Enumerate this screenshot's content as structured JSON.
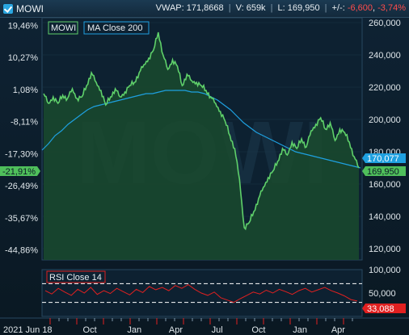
{
  "header": {
    "ticker": "MOWI",
    "vwap_label": "VWAP:",
    "vwap": "171,8668",
    "volume_label": "V:",
    "volume": "659k",
    "last_label": "L:",
    "last": "169,950",
    "change_label": "+/-:",
    "change": "-6,600",
    "change_pct": "-3,74%"
  },
  "legend": {
    "main": "MOWI",
    "ma": "MA Close 200",
    "rsi": "RSI Close 14"
  },
  "colors": {
    "price": "#4fbf5b",
    "price_fill": "#173a2a",
    "ma": "#1ea0e0",
    "rsi": "#e02020",
    "background": "#0b1a26",
    "header": "#1b3a52"
  },
  "badges": {
    "ma_value": "170,077",
    "price_value": "169,950",
    "pct_value": "-21,91%",
    "rsi_value": "33,088"
  },
  "watermark": "MOWI",
  "chart_data": {
    "type": "line",
    "title": "",
    "left_axis_ticks": [
      "19,46%",
      "10,27%",
      "1,08%",
      "-8,11%",
      "-17,30%",
      "-26,49%",
      "-35,67%",
      "-44,86%"
    ],
    "right_axis_ticks": [
      "260,000",
      "240,000",
      "220,000",
      "200,000",
      "180,000",
      "160,000",
      "140,000",
      "120,000"
    ],
    "ylim": [
      113,
      263
    ],
    "x_labels": [
      "2021 Jun 18",
      "Oct",
      "Jan",
      "Apr",
      "Jul",
      "Oct",
      "Jan",
      "Apr"
    ],
    "x_label_positions": [
      0,
      15,
      29,
      42,
      55,
      68,
      81,
      93
    ],
    "series": [
      {
        "name": "MOWI",
        "values": [
          216,
          210,
          214,
          210,
          215,
          213,
          219,
          213,
          214,
          221,
          229,
          223,
          218,
          209,
          214,
          219,
          214,
          217,
          221,
          223,
          229,
          234,
          238,
          243,
          254,
          240,
          231,
          237,
          233,
          221,
          228,
          224,
          223,
          221,
          218,
          214,
          210,
          205,
          199,
          190,
          182,
          163,
          133,
          136,
          143,
          151,
          158,
          164,
          168,
          174,
          182,
          178,
          186,
          182,
          188,
          183,
          193,
          197,
          201,
          194,
          198,
          187,
          194,
          192,
          186,
          177,
          170
        ]
      },
      {
        "name": "MA Close 200",
        "values": [
          181,
          185,
          190,
          193,
          197,
          200,
          203,
          206,
          208,
          209,
          210,
          211,
          212,
          213,
          214,
          215,
          216,
          216,
          217,
          218,
          218,
          218,
          218,
          217,
          217,
          216,
          214,
          212,
          209,
          206,
          202,
          198,
          195,
          192,
          190,
          188,
          186,
          184,
          182,
          180,
          179,
          178,
          177,
          176,
          175,
          174,
          173,
          172,
          171,
          170
        ]
      },
      {
        "name": "RSI Close 14",
        "values": [
          55,
          48,
          60,
          52,
          45,
          58,
          50,
          62,
          47,
          55,
          49,
          60,
          53,
          46,
          58,
          51,
          64,
          57,
          62,
          55,
          66,
          60,
          68,
          58,
          50,
          45,
          52,
          40,
          35,
          30,
          38,
          45,
          52,
          48,
          56,
          50,
          58,
          53,
          47,
          55,
          60,
          52,
          57,
          62,
          55,
          50,
          44,
          36,
          33
        ]
      }
    ],
    "rsi_axis_ticks": [
      "100,000",
      "50,000"
    ],
    "rsi_ylim": [
      0,
      100
    ],
    "rsi_bands": [
      70,
      30
    ]
  }
}
